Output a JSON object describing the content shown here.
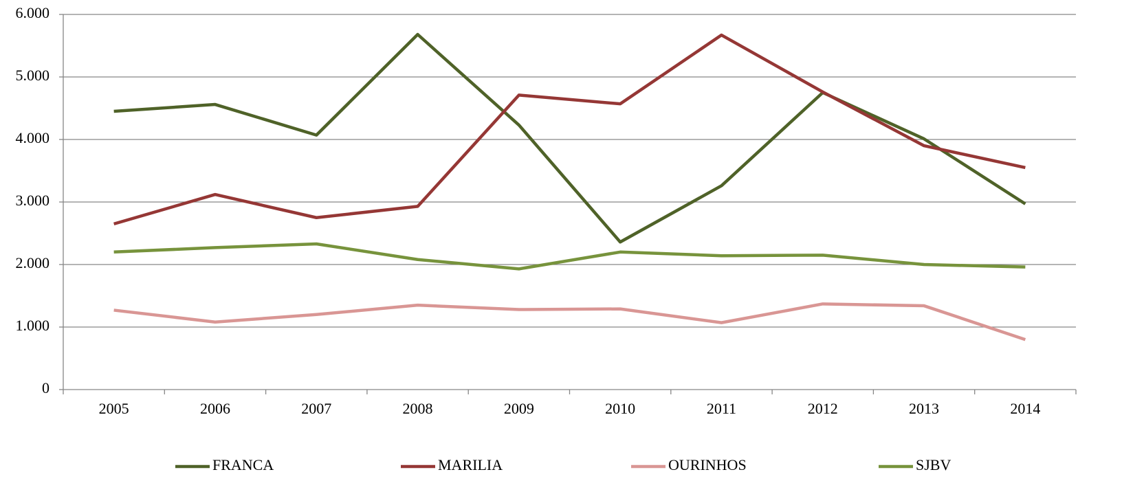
{
  "chart_data": {
    "type": "line",
    "categories": [
      "2005",
      "2006",
      "2007",
      "2008",
      "2009",
      "2010",
      "2011",
      "2012",
      "2013",
      "2014"
    ],
    "series": [
      {
        "name": "FRANCA",
        "color": "#4f6228",
        "values": [
          4450,
          4560,
          4070,
          5680,
          4230,
          2360,
          3260,
          4750,
          4010,
          2970
        ]
      },
      {
        "name": "MARILIA",
        "color": "#953735",
        "values": [
          2650,
          3120,
          2750,
          2930,
          4710,
          4570,
          5670,
          4760,
          3900,
          3550
        ]
      },
      {
        "name": "OURINHOS",
        "color": "#d99694",
        "values": [
          1270,
          1080,
          1200,
          1350,
          1280,
          1290,
          1070,
          1370,
          1340,
          800
        ]
      },
      {
        "name": "SJBV",
        "color": "#77933c",
        "values": [
          2200,
          2270,
          2330,
          2080,
          1930,
          2200,
          2140,
          2150,
          2000,
          1960
        ]
      }
    ],
    "ylim": [
      0,
      6000
    ],
    "yticks": [
      0,
      {
        "value": 1000,
        "label": "1.000"
      },
      {
        "value": 2000,
        "label": "2.000"
      },
      {
        "value": 3000,
        "label": "3.000"
      },
      {
        "value": 4000,
        "label": "4.000"
      },
      {
        "value": 5000,
        "label": "5.000"
      },
      {
        "value": 6000,
        "label": "6.000"
      }
    ],
    "grid": true,
    "legend": "bottom"
  }
}
